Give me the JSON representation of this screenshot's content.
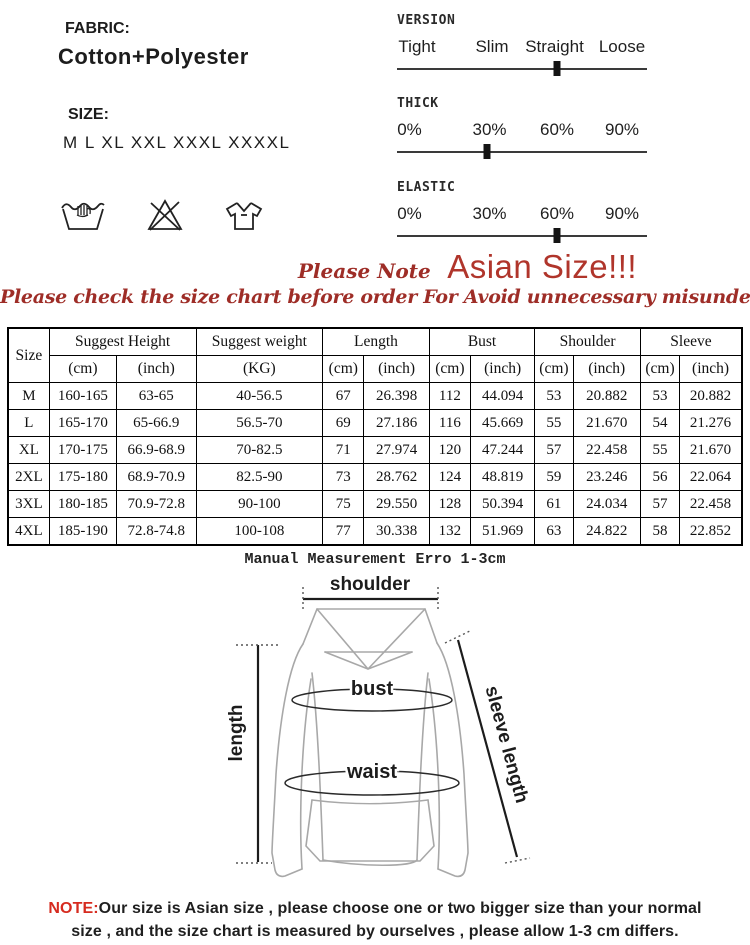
{
  "colors": {
    "red_heading": "#b0352b",
    "red_sub": "#9e2d27",
    "note_red": "#d62b1f",
    "line_black": "#1c1c1c",
    "outline_gray": "#a8a8a8"
  },
  "fabric": {
    "label": "FABRIC:",
    "value": "Cotton+Polyester"
  },
  "size": {
    "label": "SIZE:",
    "value": "M L XL XXL XXXL XXXXL"
  },
  "care_icons": [
    {
      "name": "hand-wash-icon"
    },
    {
      "name": "do-not-bleach-icon"
    },
    {
      "name": "t-shirt-icon"
    }
  ],
  "sliders": [
    {
      "label": "VERSION",
      "selected": "Straight",
      "marker_pct": 64,
      "options": [
        {
          "label": "Tight",
          "pos_pct": 8
        },
        {
          "label": "Slim",
          "pos_pct": 38
        },
        {
          "label": "Straight",
          "pos_pct": 63
        },
        {
          "label": "Loose",
          "pos_pct": 90
        }
      ]
    },
    {
      "label": "THICK",
      "selected": "30%",
      "marker_pct": 36,
      "options": [
        {
          "label": "0%",
          "pos_pct": 5
        },
        {
          "label": "30%",
          "pos_pct": 37
        },
        {
          "label": "60%",
          "pos_pct": 64
        },
        {
          "label": "90%",
          "pos_pct": 90
        }
      ]
    },
    {
      "label": "ELASTIC",
      "selected": "60%",
      "marker_pct": 64,
      "options": [
        {
          "label": "0%",
          "pos_pct": 5
        },
        {
          "label": "30%",
          "pos_pct": 37
        },
        {
          "label": "60%",
          "pos_pct": 64
        },
        {
          "label": "90%",
          "pos_pct": 90
        }
      ]
    }
  ],
  "notice": {
    "please_note": "Please Note",
    "asian_size": "Asian Size!!!",
    "line2": "Please check the size chart before order  For Avoid unnecessary misunderstanding"
  },
  "size_table": {
    "groups": [
      {
        "label": "Size"
      },
      {
        "label": "Suggest Height",
        "sub": [
          "(cm)",
          "(inch)"
        ]
      },
      {
        "label": "Suggest weight",
        "sub": [
          "(KG)"
        ]
      },
      {
        "label": "Length",
        "sub": [
          "(cm)",
          "(inch)"
        ]
      },
      {
        "label": "Bust",
        "sub": [
          "(cm)",
          "(inch)"
        ]
      },
      {
        "label": "Shoulder",
        "sub": [
          "(cm)",
          "(inch)"
        ]
      },
      {
        "label": "Sleeve",
        "sub": [
          "(cm)",
          "(inch)"
        ]
      }
    ],
    "rows": [
      [
        "M",
        "160-165",
        "63-65",
        "40-56.5",
        "67",
        "26.398",
        "112",
        "44.094",
        "53",
        "20.882",
        "53",
        "20.882"
      ],
      [
        "L",
        "165-170",
        "65-66.9",
        "56.5-70",
        "69",
        "27.186",
        "116",
        "45.669",
        "55",
        "21.670",
        "54",
        "21.276"
      ],
      [
        "XL",
        "170-175",
        "66.9-68.9",
        "70-82.5",
        "71",
        "27.974",
        "120",
        "47.244",
        "57",
        "22.458",
        "55",
        "21.670"
      ],
      [
        "2XL",
        "175-180",
        "68.9-70.9",
        "82.5-90",
        "73",
        "28.762",
        "124",
        "48.819",
        "59",
        "23.246",
        "56",
        "22.064"
      ],
      [
        "3XL",
        "180-185",
        "70.9-72.8",
        "90-100",
        "75",
        "29.550",
        "128",
        "50.394",
        "61",
        "24.034",
        "57",
        "22.458"
      ],
      [
        "4XL",
        "185-190",
        "72.8-74.8",
        "100-108",
        "77",
        "30.338",
        "132",
        "51.969",
        "63",
        "24.822",
        "58",
        "22.852"
      ]
    ]
  },
  "measurement": {
    "title": "Manual Measurement Erro 1-3cm",
    "labels": {
      "shoulder": "shoulder",
      "bust": "bust",
      "waist": "waist",
      "length": "length",
      "sleeve_length": "sleeve length"
    }
  },
  "note": {
    "label": "NOTE:",
    "line1": "Our size is Asian size , please choose one or two bigger size than your normal",
    "line2": "size , and the size chart is measured by ourselves , please allow 1-3 cm differs."
  }
}
